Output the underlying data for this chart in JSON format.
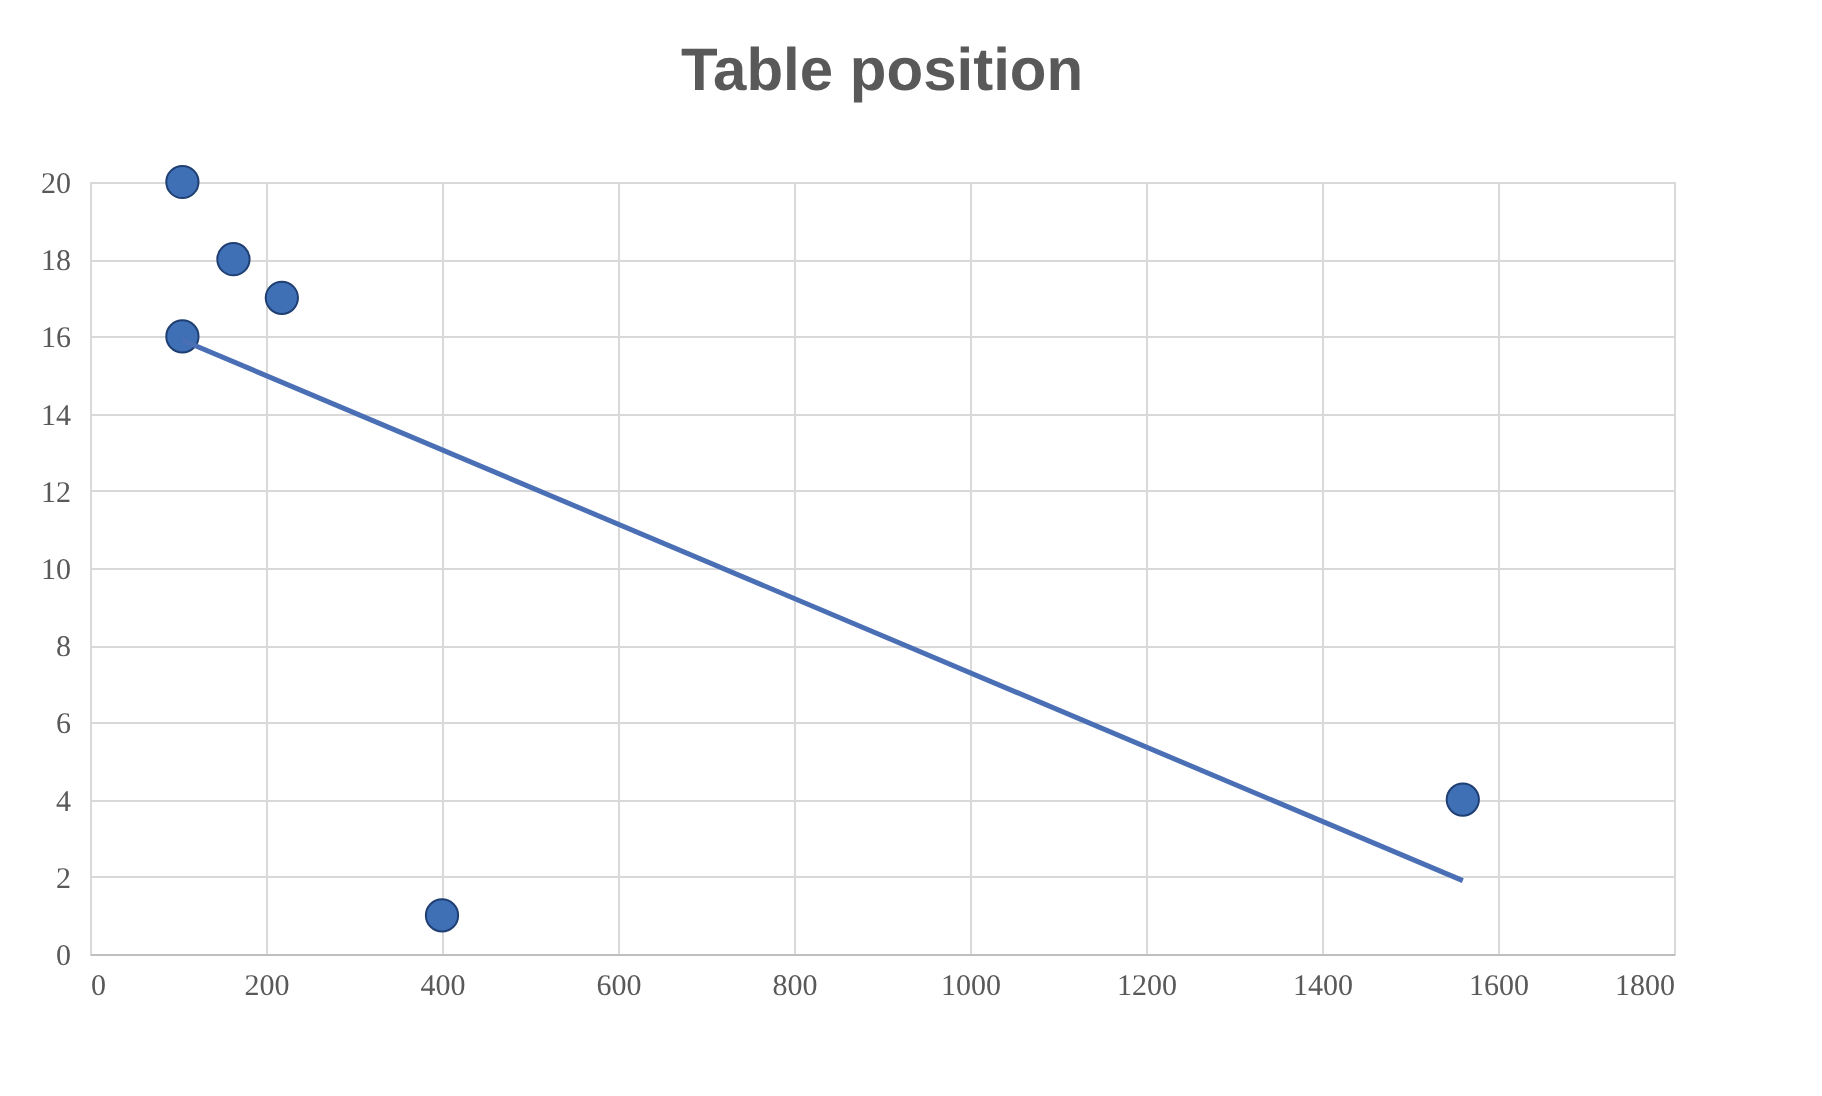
{
  "chart_data": {
    "type": "scatter",
    "title": "Table position",
    "series": [
      {
        "color": "#3f6fb5",
        "marker": "circle",
        "x": [
          105,
          163,
          218,
          105,
          400,
          1560
        ],
        "values": [
          20,
          18,
          17,
          16,
          1,
          4
        ]
      },
      {
        "type": "line",
        "color": "#4a6fb5",
        "x": [
          105,
          1560
        ],
        "values": [
          15.9,
          1.9
        ]
      }
    ],
    "xlim": [
      0,
      1800
    ],
    "xticks": [
      0,
      200,
      400,
      600,
      800,
      1000,
      1200,
      1400,
      1600,
      1800
    ],
    "ylim": [
      0,
      20
    ],
    "yticks": [
      0,
      2,
      4,
      6,
      8,
      10,
      12,
      14,
      16,
      18,
      20
    ],
    "grid": true
  }
}
